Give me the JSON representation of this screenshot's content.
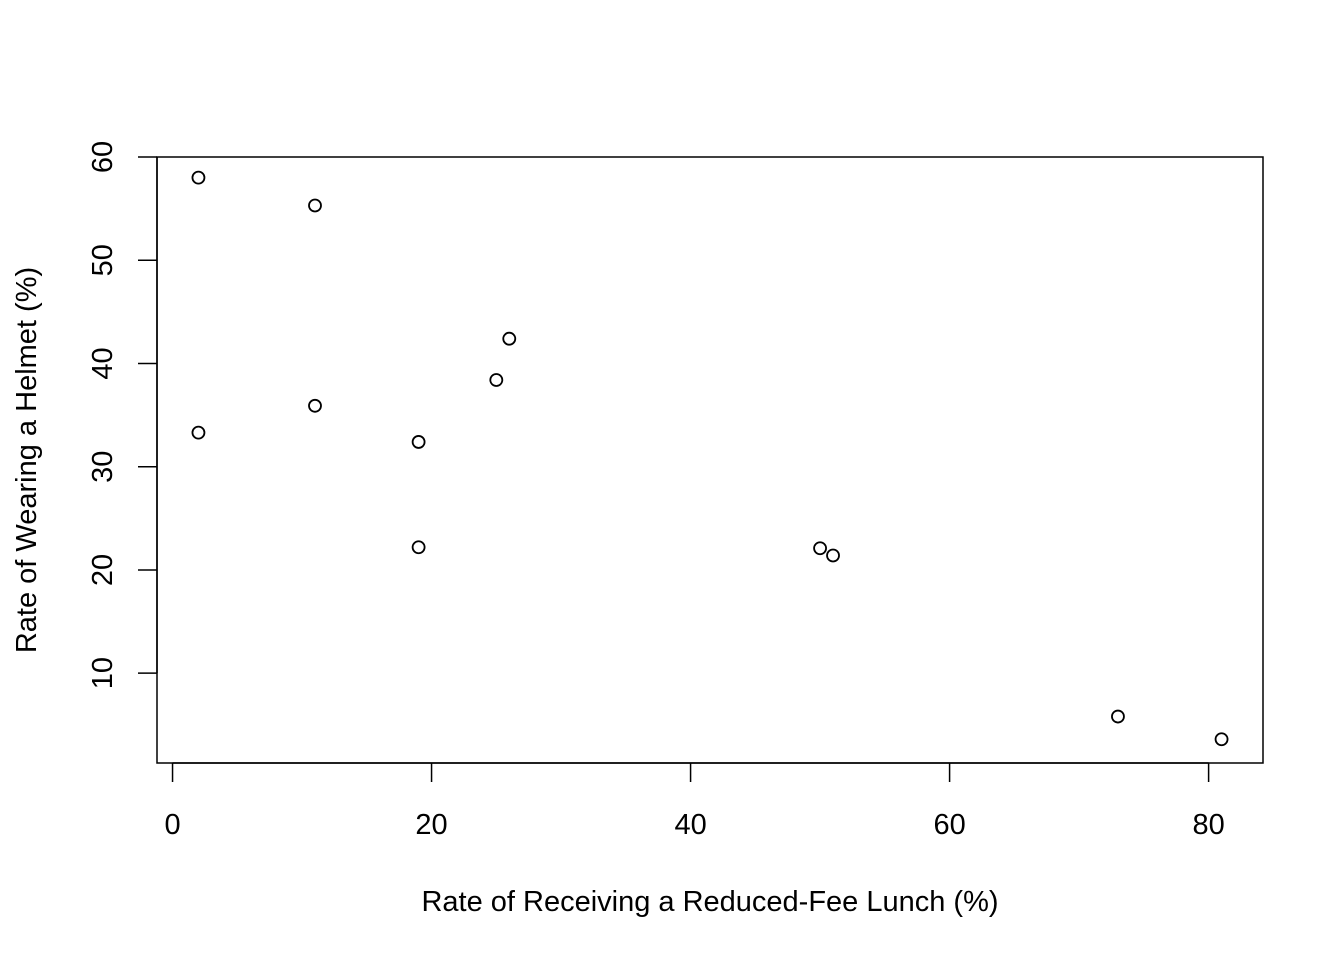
{
  "chart_data": {
    "type": "scatter",
    "title": "",
    "xlabel": "Rate of Receiving a Reduced-Fee Lunch (%)",
    "ylabel": "Rate of Wearing a Helmet (%)",
    "xlim": [
      -1.2,
      84.2
    ],
    "ylim": [
      1.3,
      60.0
    ],
    "x_ticks": [
      0,
      20,
      40,
      60,
      80
    ],
    "y_ticks": [
      10,
      20,
      30,
      40,
      50,
      60
    ],
    "x_tick_labels": [
      "0",
      "20",
      "40",
      "60",
      "80"
    ],
    "y_tick_labels": [
      "10",
      "20",
      "30",
      "40",
      "50",
      "60"
    ],
    "grid": false,
    "marker": "open-circle",
    "marker_color": "#000000",
    "points": [
      {
        "x": 2,
        "y": 58.0
      },
      {
        "x": 11,
        "y": 55.3
      },
      {
        "x": 26,
        "y": 42.4
      },
      {
        "x": 25,
        "y": 38.4
      },
      {
        "x": 11,
        "y": 35.9
      },
      {
        "x": 2,
        "y": 33.3
      },
      {
        "x": 19,
        "y": 32.4
      },
      {
        "x": 19,
        "y": 22.2
      },
      {
        "x": 50,
        "y": 22.1
      },
      {
        "x": 51,
        "y": 21.4
      },
      {
        "x": 73,
        "y": 5.8
      },
      {
        "x": 81,
        "y": 3.6
      }
    ]
  }
}
